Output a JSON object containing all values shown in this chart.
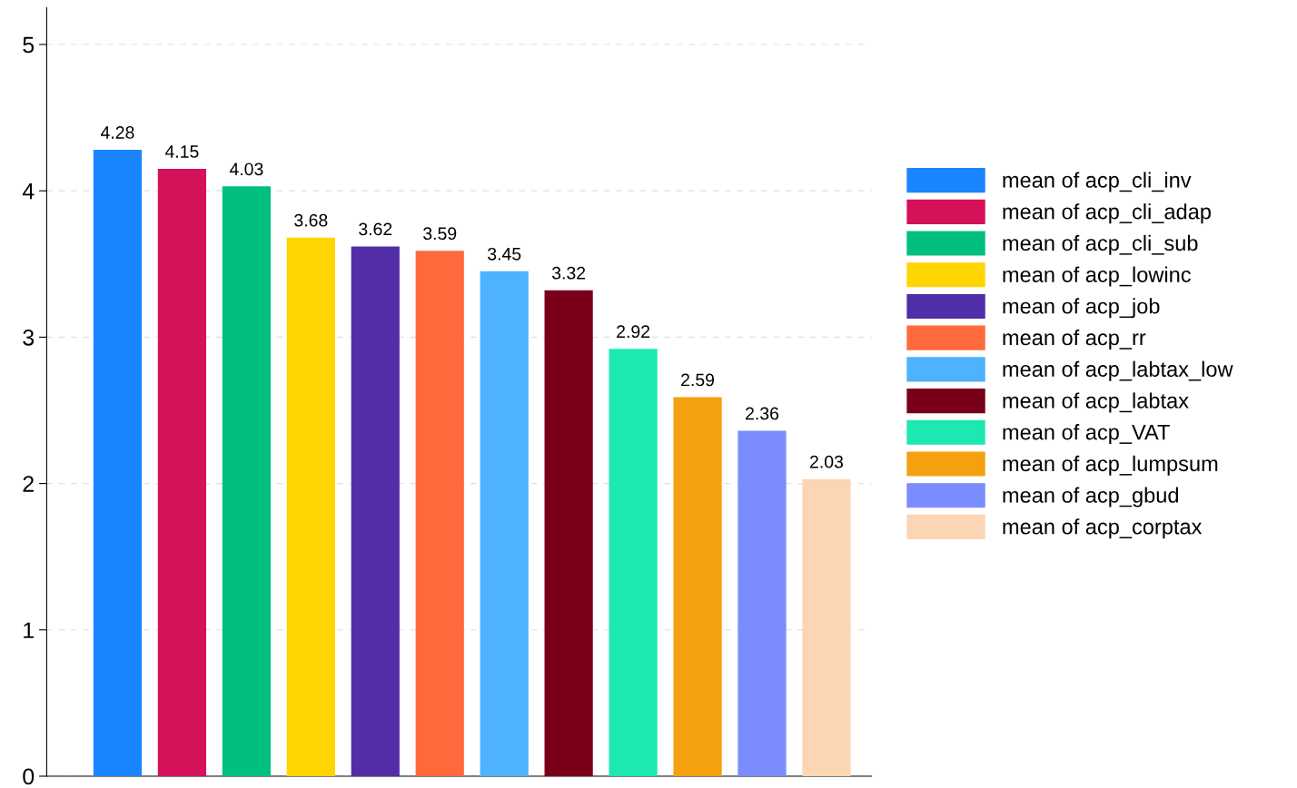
{
  "chart_data": {
    "type": "bar",
    "categories": [
      null,
      null,
      null,
      null,
      null,
      null,
      null,
      null,
      null,
      null,
      null,
      null
    ],
    "series": [
      {
        "name": "mean of acp_cli_inv",
        "color": "#1a85ff",
        "values": [
          4.28,
          null,
          null,
          null,
          null,
          null,
          null,
          null,
          null,
          null,
          null,
          null
        ]
      },
      {
        "name": "mean of acp_cli_adap",
        "color": "#d41159",
        "values": [
          null,
          4.15,
          null,
          null,
          null,
          null,
          null,
          null,
          null,
          null,
          null,
          null
        ]
      },
      {
        "name": "mean of acp_cli_sub",
        "color": "#00bf7f",
        "values": [
          null,
          null,
          4.03,
          null,
          null,
          null,
          null,
          null,
          null,
          null,
          null,
          null
        ]
      },
      {
        "name": "mean of acp_lowinc",
        "color": "#ffd400",
        "values": [
          null,
          null,
          null,
          3.68,
          null,
          null,
          null,
          null,
          null,
          null,
          null,
          null
        ]
      },
      {
        "name": "mean of acp_job",
        "color": "#512da8",
        "values": [
          null,
          null,
          null,
          null,
          3.62,
          null,
          null,
          null,
          null,
          null,
          null,
          null
        ]
      },
      {
        "name": "mean of acp_rr",
        "color": "#ff6a3d",
        "values": [
          null,
          null,
          null,
          null,
          null,
          3.59,
          null,
          null,
          null,
          null,
          null,
          null
        ]
      },
      {
        "name": "mean of acp_labtax_low",
        "color": "#4db3ff",
        "values": [
          null,
          null,
          null,
          null,
          null,
          null,
          3.45,
          null,
          null,
          null,
          null,
          null
        ]
      },
      {
        "name": "mean of acp_labtax",
        "color": "#7a0019",
        "values": [
          null,
          null,
          null,
          null,
          null,
          null,
          null,
          3.32,
          null,
          null,
          null,
          null
        ]
      },
      {
        "name": "mean of acp_VAT",
        "color": "#1ee8b2",
        "values": [
          null,
          null,
          null,
          null,
          null,
          null,
          null,
          null,
          2.92,
          null,
          null,
          null
        ]
      },
      {
        "name": "mean of acp_lumpsum",
        "color": "#f5a00f",
        "values": [
          null,
          null,
          null,
          null,
          null,
          null,
          null,
          null,
          null,
          2.59,
          null,
          null
        ]
      },
      {
        "name": "mean of acp_gbud",
        "color": "#7b8cff",
        "values": [
          null,
          null,
          null,
          null,
          null,
          null,
          null,
          null,
          null,
          null,
          2.36,
          null
        ]
      },
      {
        "name": "mean of acp_corptax",
        "color": "#fcd5b5",
        "values": [
          null,
          null,
          null,
          null,
          null,
          null,
          null,
          null,
          null,
          null,
          null,
          2.03
        ]
      }
    ],
    "stacked": true,
    "ylim": [
      0,
      5.25
    ],
    "yticks": [
      0,
      1,
      2,
      3,
      4,
      5
    ],
    "grid": "y",
    "legend": "right",
    "data_labels": true
  }
}
